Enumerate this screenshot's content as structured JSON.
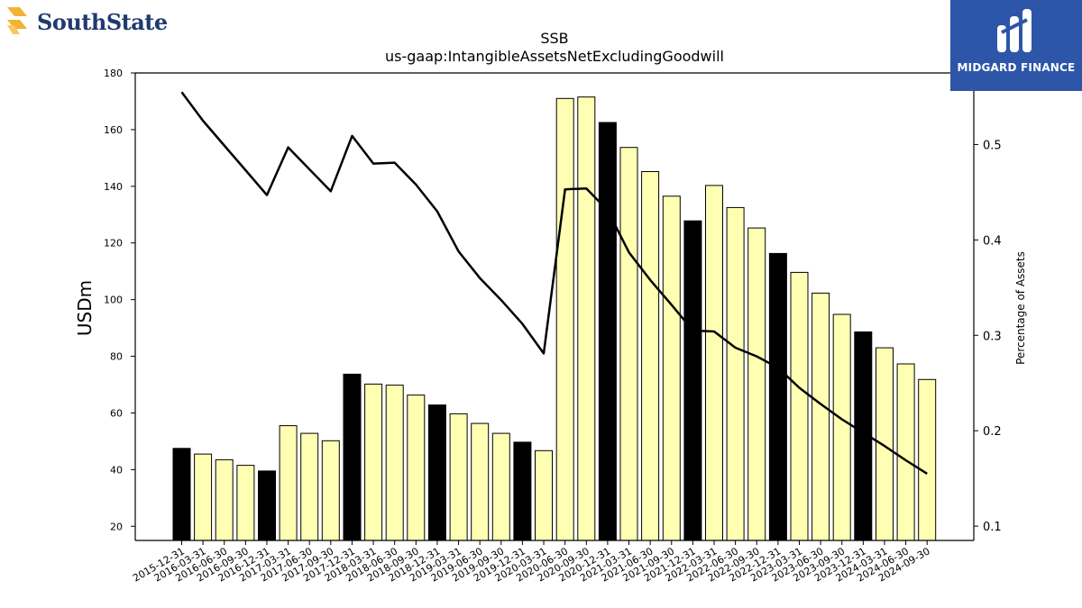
{
  "branding": {
    "left_logo_text": "SouthState",
    "right_logo_text": "MIDGARD FINANCE"
  },
  "chart_data": {
    "type": "bar",
    "title": "SSB",
    "subtitle": "us-gaap:IntangibleAssetsNetExcludingGoodwill",
    "ylabel": "USDm",
    "y2label": "Percentage of Assets",
    "ylim": [
      15,
      180
    ],
    "y2lim": [
      0.085,
      0.575
    ],
    "yticks": [
      20,
      40,
      60,
      80,
      100,
      120,
      140,
      160,
      180
    ],
    "y2ticks": [
      0.1,
      0.2,
      0.3,
      0.4,
      0.5
    ],
    "categories": [
      "2015-12-31",
      "2016-03-31",
      "2016-06-30",
      "2016-09-30",
      "2016-12-31",
      "2017-03-31",
      "2017-06-30",
      "2017-09-30",
      "2017-12-31",
      "2018-03-31",
      "2018-06-30",
      "2018-09-30",
      "2018-12-31",
      "2019-03-31",
      "2019-06-30",
      "2019-09-30",
      "2019-12-31",
      "2020-03-31",
      "2020-06-30",
      "2020-09-30",
      "2020-12-31",
      "2021-03-31",
      "2021-06-30",
      "2021-09-30",
      "2021-12-31",
      "2022-03-31",
      "2022-06-30",
      "2022-09-30",
      "2022-12-31",
      "2023-03-31",
      "2023-06-30",
      "2023-09-30",
      "2023-12-31",
      "2024-03-31",
      "2024-06-30",
      "2024-09-30"
    ],
    "series": [
      {
        "kind": "bar",
        "values": [
          47.5,
          45.5,
          43.5,
          41.5,
          39.5,
          55.5,
          52.8,
          50.2,
          73.7,
          70.2,
          69.8,
          66.3,
          62.8,
          59.7,
          56.3,
          52.8,
          49.7,
          46.7,
          171.0,
          171.5,
          162.5,
          153.7,
          145.2,
          136.5,
          127.8,
          140.3,
          132.5,
          125.3,
          116.3,
          109.6,
          102.3,
          94.8,
          88.6,
          83.0,
          77.3,
          71.8
        ],
        "year_end_color": "#000000",
        "color": "#ffffb3"
      },
      {
        "kind": "line",
        "axis": "right",
        "values": [
          0.555,
          0.525,
          0.499,
          0.473,
          0.447,
          0.497,
          0.474,
          0.451,
          0.509,
          0.48,
          0.481,
          0.458,
          0.43,
          0.388,
          0.36,
          0.337,
          0.312,
          0.281,
          0.453,
          0.454,
          0.431,
          0.387,
          0.358,
          0.332,
          0.305,
          0.304,
          0.287,
          0.278,
          0.266,
          0.245,
          0.228,
          0.212,
          0.198,
          0.184,
          0.169,
          0.155
        ],
        "color": "#000000"
      }
    ],
    "legend": "none",
    "grid": false
  }
}
